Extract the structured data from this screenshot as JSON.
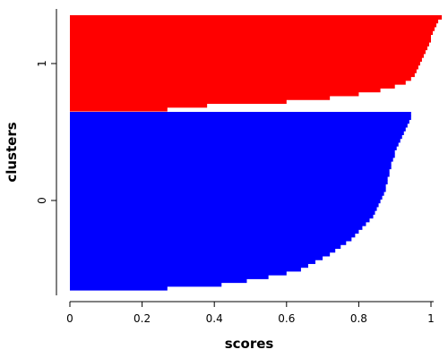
{
  "chart_data": {
    "type": "bar",
    "orientation": "horizontal",
    "xlabel": "scores",
    "ylabel": "clusters",
    "xlim": [
      0,
      1.03
    ],
    "x_ticks": [
      0,
      0.2,
      0.4,
      0.6,
      0.8,
      1
    ],
    "x_tick_labels": [
      "0",
      "0.2",
      "0.4",
      "0.6",
      "0.8",
      "1"
    ],
    "y_ticks": [
      {
        "label": "0",
        "cluster": 0
      },
      {
        "label": "1",
        "cluster": 1
      }
    ],
    "grid": false,
    "series": [
      {
        "cluster": "0",
        "color": "#0000ff",
        "sorted_scores": [
          0.945,
          0.945,
          0.94,
          0.935,
          0.93,
          0.925,
          0.92,
          0.915,
          0.91,
          0.905,
          0.9,
          0.9,
          0.895,
          0.89,
          0.89,
          0.885,
          0.885,
          0.88,
          0.88,
          0.875,
          0.875,
          0.87,
          0.865,
          0.86,
          0.855,
          0.85,
          0.845,
          0.84,
          0.83,
          0.82,
          0.81,
          0.8,
          0.79,
          0.78,
          0.765,
          0.75,
          0.735,
          0.72,
          0.7,
          0.68,
          0.66,
          0.64,
          0.6,
          0.55,
          0.49,
          0.42,
          0.27
        ]
      },
      {
        "cluster": "1",
        "color": "#ff0000",
        "sorted_scores": [
          1.03,
          1.02,
          1.015,
          1.01,
          1.005,
          1.0,
          1.0,
          0.995,
          0.99,
          0.985,
          0.98,
          0.975,
          0.97,
          0.965,
          0.96,
          0.955,
          0.945,
          0.93,
          0.9,
          0.86,
          0.8,
          0.72,
          0.6,
          0.38,
          0.27
        ]
      }
    ]
  }
}
